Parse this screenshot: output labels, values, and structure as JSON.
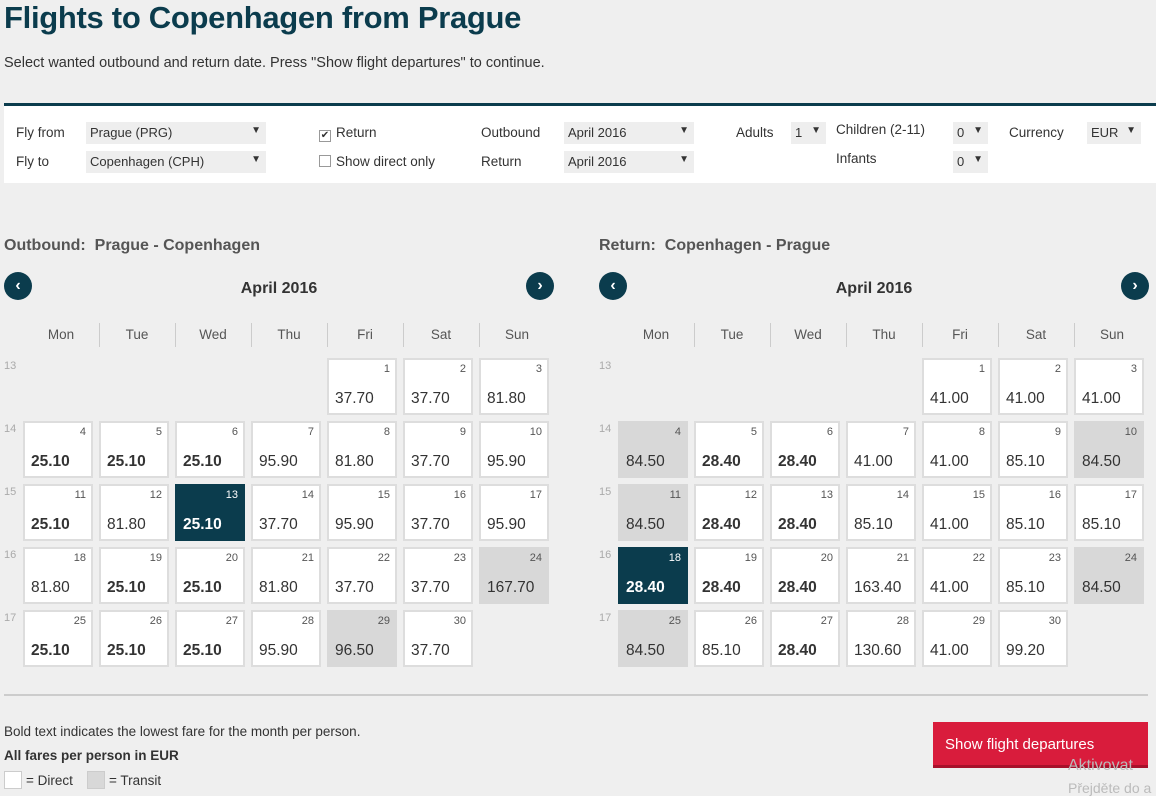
{
  "page": {
    "title": "Flights to Copenhagen from Prague",
    "subtitle": "Select wanted outbound and return date. Press \"Show flight departures\" to continue."
  },
  "search": {
    "fly_from_label": "Fly from",
    "fly_from_value": "Prague (PRG)",
    "fly_to_label": "Fly to",
    "fly_to_value": "Copenhagen (CPH)",
    "return_label": "Return",
    "return_checked": "✔",
    "direct_only_label": "Show direct only",
    "outbound_label": "Outbound",
    "outbound_value": "April 2016",
    "return_month_label": "Return",
    "return_month_value": "April 2016",
    "adults_label": "Adults",
    "adults_value": "1",
    "children_label": "Children (2-11)",
    "children_value": "0",
    "infants_label": "Infants",
    "infants_value": "0",
    "currency_label": "Currency",
    "currency_value": "EUR"
  },
  "weekdays": [
    "Mon",
    "Tue",
    "Wed",
    "Thu",
    "Fri",
    "Sat",
    "Sun"
  ],
  "week_numbers": [
    "13",
    "14",
    "15",
    "16",
    "17"
  ],
  "outbound": {
    "heading_prefix": "Outbound:",
    "heading_route": "Prague - Copenhagen",
    "month": "April 2016",
    "prev_icon": "‹",
    "next_icon": "›",
    "days": [
      {
        "d": "1",
        "p": "37.70",
        "t": "direct",
        "b": false
      },
      {
        "d": "2",
        "p": "37.70",
        "t": "direct",
        "b": false
      },
      {
        "d": "3",
        "p": "81.80",
        "t": "direct",
        "b": false
      },
      {
        "d": "4",
        "p": "25.10",
        "t": "direct",
        "b": true
      },
      {
        "d": "5",
        "p": "25.10",
        "t": "direct",
        "b": true
      },
      {
        "d": "6",
        "p": "25.10",
        "t": "direct",
        "b": true
      },
      {
        "d": "7",
        "p": "95.90",
        "t": "direct",
        "b": false
      },
      {
        "d": "8",
        "p": "81.80",
        "t": "direct",
        "b": false
      },
      {
        "d": "9",
        "p": "37.70",
        "t": "direct",
        "b": false
      },
      {
        "d": "10",
        "p": "95.90",
        "t": "direct",
        "b": false
      },
      {
        "d": "11",
        "p": "25.10",
        "t": "direct",
        "b": true
      },
      {
        "d": "12",
        "p": "81.80",
        "t": "direct",
        "b": false
      },
      {
        "d": "13",
        "p": "25.10",
        "t": "selected",
        "b": true
      },
      {
        "d": "14",
        "p": "37.70",
        "t": "direct",
        "b": false
      },
      {
        "d": "15",
        "p": "95.90",
        "t": "direct",
        "b": false
      },
      {
        "d": "16",
        "p": "37.70",
        "t": "direct",
        "b": false
      },
      {
        "d": "17",
        "p": "95.90",
        "t": "direct",
        "b": false
      },
      {
        "d": "18",
        "p": "81.80",
        "t": "direct",
        "b": false
      },
      {
        "d": "19",
        "p": "25.10",
        "t": "direct",
        "b": true
      },
      {
        "d": "20",
        "p": "25.10",
        "t": "direct",
        "b": true
      },
      {
        "d": "21",
        "p": "81.80",
        "t": "direct",
        "b": false
      },
      {
        "d": "22",
        "p": "37.70",
        "t": "direct",
        "b": false
      },
      {
        "d": "23",
        "p": "37.70",
        "t": "direct",
        "b": false
      },
      {
        "d": "24",
        "p": "167.70",
        "t": "transit",
        "b": false
      },
      {
        "d": "25",
        "p": "25.10",
        "t": "direct",
        "b": true
      },
      {
        "d": "26",
        "p": "25.10",
        "t": "direct",
        "b": true
      },
      {
        "d": "27",
        "p": "25.10",
        "t": "direct",
        "b": true
      },
      {
        "d": "28",
        "p": "95.90",
        "t": "direct",
        "b": false
      },
      {
        "d": "29",
        "p": "96.50",
        "t": "transit",
        "b": false
      },
      {
        "d": "30",
        "p": "37.70",
        "t": "direct",
        "b": false
      }
    ]
  },
  "return_cal": {
    "heading_prefix": "Return:",
    "heading_route": "Copenhagen - Prague",
    "month": "April 2016",
    "prev_icon": "‹",
    "next_icon": "›",
    "days": [
      {
        "d": "1",
        "p": "41.00",
        "t": "direct",
        "b": false
      },
      {
        "d": "2",
        "p": "41.00",
        "t": "direct",
        "b": false
      },
      {
        "d": "3",
        "p": "41.00",
        "t": "direct",
        "b": false
      },
      {
        "d": "4",
        "p": "84.50",
        "t": "transit",
        "b": false
      },
      {
        "d": "5",
        "p": "28.40",
        "t": "direct",
        "b": true
      },
      {
        "d": "6",
        "p": "28.40",
        "t": "direct",
        "b": true
      },
      {
        "d": "7",
        "p": "41.00",
        "t": "direct",
        "b": false
      },
      {
        "d": "8",
        "p": "41.00",
        "t": "direct",
        "b": false
      },
      {
        "d": "9",
        "p": "85.10",
        "t": "direct",
        "b": false
      },
      {
        "d": "10",
        "p": "84.50",
        "t": "transit",
        "b": false
      },
      {
        "d": "11",
        "p": "84.50",
        "t": "transit",
        "b": false
      },
      {
        "d": "12",
        "p": "28.40",
        "t": "direct",
        "b": true
      },
      {
        "d": "13",
        "p": "28.40",
        "t": "direct",
        "b": true
      },
      {
        "d": "14",
        "p": "85.10",
        "t": "direct",
        "b": false
      },
      {
        "d": "15",
        "p": "41.00",
        "t": "direct",
        "b": false
      },
      {
        "d": "16",
        "p": "85.10",
        "t": "direct",
        "b": false
      },
      {
        "d": "17",
        "p": "85.10",
        "t": "direct",
        "b": false
      },
      {
        "d": "18",
        "p": "28.40",
        "t": "selected",
        "b": true
      },
      {
        "d": "19",
        "p": "28.40",
        "t": "direct",
        "b": true
      },
      {
        "d": "20",
        "p": "28.40",
        "t": "direct",
        "b": true
      },
      {
        "d": "21",
        "p": "163.40",
        "t": "direct",
        "b": false
      },
      {
        "d": "22",
        "p": "41.00",
        "t": "direct",
        "b": false
      },
      {
        "d": "23",
        "p": "85.10",
        "t": "direct",
        "b": false
      },
      {
        "d": "24",
        "p": "84.50",
        "t": "transit",
        "b": false
      },
      {
        "d": "25",
        "p": "84.50",
        "t": "transit",
        "b": false
      },
      {
        "d": "26",
        "p": "85.10",
        "t": "direct",
        "b": false
      },
      {
        "d": "27",
        "p": "28.40",
        "t": "direct",
        "b": true
      },
      {
        "d": "28",
        "p": "130.60",
        "t": "direct",
        "b": false
      },
      {
        "d": "29",
        "p": "41.00",
        "t": "direct",
        "b": false
      },
      {
        "d": "30",
        "p": "99.20",
        "t": "direct",
        "b": false
      }
    ]
  },
  "footer": {
    "note": "Bold text indicates the lowest fare for the month per person.",
    "fares_note": "All fares per person in EUR",
    "legend_direct": "= Direct",
    "legend_transit": "= Transit",
    "cta_label": "Show flight departures"
  },
  "watermark": {
    "line1": "Aktivovat",
    "line2": "Přejděte do a"
  },
  "colors": {
    "brand_dark": "#0b3c4d",
    "cta_red": "#d91c3c",
    "transit_gray": "#d8d8d8"
  },
  "icons": {
    "select_arrow": "▼"
  }
}
